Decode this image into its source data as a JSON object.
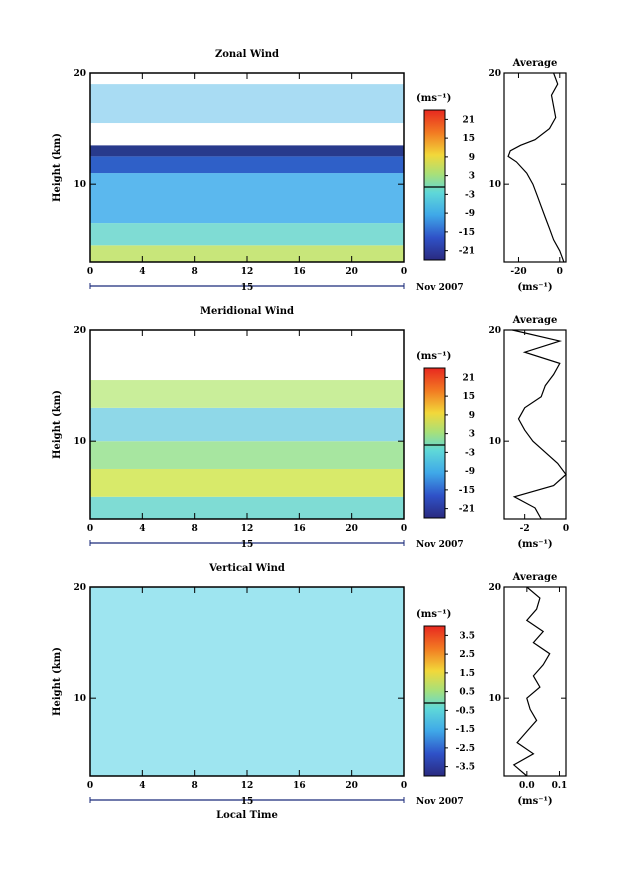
{
  "chart_data": [
    {
      "type": "heatmap",
      "title": "Zonal Wind",
      "xlabel": "",
      "ylabel": "Height (km)",
      "x_ticks": [
        "0",
        "4",
        "8",
        "12",
        "16",
        "20",
        "0"
      ],
      "xlim": [
        0,
        24
      ],
      "ylim": [
        3,
        20
      ],
      "y_ticks": [
        "10",
        "20"
      ],
      "date_label": "15",
      "month_label": "Nov 2007",
      "colorbar_unit": "(ms⁻¹)",
      "colorbar_ticks": [
        "21",
        "15",
        "9",
        "3",
        "-3",
        "-9",
        "-15",
        "-21"
      ],
      "layers": [
        {
          "y0": 3,
          "y1": 4.5,
          "color": "#c8e67a"
        },
        {
          "y0": 4.5,
          "y1": 6.5,
          "color": "#7fdcd4"
        },
        {
          "y0": 6.5,
          "y1": 11,
          "color": "#5bb8ee"
        },
        {
          "y0": 11,
          "y1": 12.5,
          "color": "#2f60c8"
        },
        {
          "y0": 12.5,
          "y1": 13.5,
          "color": "#283a8c"
        },
        {
          "y0": 13.5,
          "y1": 15.5,
          "color": "#ffffff"
        },
        {
          "y0": 15.5,
          "y1": 19,
          "color": "#a9dcf3"
        }
      ],
      "average": {
        "title": "Average",
        "xlabel": "(ms⁻¹)",
        "x_ticks": [
          "-20",
          "0"
        ],
        "x_tick_values": [
          -20,
          0
        ],
        "xlim": [
          -27,
          3
        ],
        "ylim": [
          3,
          20
        ],
        "y_ticks": [
          "10",
          "20"
        ],
        "profile": {
          "height": [
            3,
            4,
            5,
            6,
            7,
            8,
            9,
            10,
            11,
            12,
            12.5,
            13,
            13.5,
            14,
            15,
            16,
            17,
            18,
            19,
            20
          ],
          "value": [
            2,
            0,
            -3,
            -5,
            -7,
            -9,
            -11,
            -13,
            -16,
            -21,
            -25,
            -24,
            -19,
            -12,
            -5,
            -2,
            -3,
            -4,
            -1,
            -3
          ]
        }
      }
    },
    {
      "type": "heatmap",
      "title": "Meridional Wind",
      "xlabel": "",
      "ylabel": "Height (km)",
      "x_ticks": [
        "0",
        "4",
        "8",
        "12",
        "16",
        "20",
        "0"
      ],
      "xlim": [
        0,
        24
      ],
      "ylim": [
        3,
        20
      ],
      "y_ticks": [
        "10",
        "20"
      ],
      "date_label": "15",
      "month_label": "Nov 2007",
      "colorbar_unit": "(ms⁻¹)",
      "colorbar_ticks": [
        "21",
        "15",
        "9",
        "3",
        "-3",
        "-9",
        "-15",
        "-21"
      ],
      "layers": [
        {
          "y0": 3,
          "y1": 5,
          "color": "#7fdcd4"
        },
        {
          "y0": 5,
          "y1": 7.5,
          "color": "#d8ea6a"
        },
        {
          "y0": 7.5,
          "y1": 10,
          "color": "#a7e6a0"
        },
        {
          "y0": 10,
          "y1": 13,
          "color": "#8fd8e8"
        },
        {
          "y0": 13,
          "y1": 15.5,
          "color": "#c9ee9a"
        },
        {
          "y0": 15.5,
          "y1": 18,
          "color": "#ffffff"
        }
      ],
      "average": {
        "title": "Average",
        "xlabel": "(ms⁻¹)",
        "x_ticks": [
          "-2",
          "0"
        ],
        "x_tick_values": [
          -2,
          0
        ],
        "xlim": [
          -3,
          0
        ],
        "ylim": [
          3,
          20
        ],
        "y_ticks": [
          "10",
          "20"
        ],
        "profile": {
          "height": [
            3,
            4,
            5,
            6,
            7,
            8,
            9,
            10,
            11,
            12,
            13,
            14,
            15,
            16,
            17,
            18,
            19,
            20
          ],
          "value": [
            -1.2,
            -1.5,
            -2.5,
            -0.6,
            0,
            -0.4,
            -1.0,
            -1.6,
            -2.0,
            -2.3,
            -2.0,
            -1.2,
            -1.0,
            -0.6,
            -0.3,
            -2.0,
            -0.3,
            -2.6
          ]
        }
      }
    },
    {
      "type": "heatmap",
      "title": "Vertical Wind",
      "xlabel": "Local Time",
      "ylabel": "Height (km)",
      "x_ticks": [
        "0",
        "4",
        "8",
        "12",
        "16",
        "20",
        "0"
      ],
      "xlim": [
        0,
        24
      ],
      "ylim": [
        3,
        20
      ],
      "y_ticks": [
        "10",
        "20"
      ],
      "date_label": "15",
      "month_label": "Nov 2007",
      "colorbar_unit": "(ms⁻¹)",
      "colorbar_ticks": [
        "3.5",
        "2.5",
        "1.5",
        "0.5",
        "-0.5",
        "-1.5",
        "-2.5",
        "-3.5"
      ],
      "layers": [
        {
          "y0": 3,
          "y1": 20,
          "color": "#9ee5f0"
        }
      ],
      "average": {
        "title": "Average",
        "xlabel": "(ms⁻¹)",
        "x_ticks": [
          "0.0",
          "0.1"
        ],
        "x_tick_values": [
          0,
          0.1
        ],
        "xlim": [
          -0.07,
          0.12
        ],
        "ylim": [
          3,
          20
        ],
        "y_ticks": [
          "10",
          "20"
        ],
        "profile": {
          "height": [
            3,
            4,
            5,
            6,
            7,
            8,
            9,
            10,
            11,
            12,
            13,
            14,
            15,
            16,
            17,
            18,
            19,
            20
          ],
          "value": [
            0.0,
            -0.04,
            0.02,
            -0.03,
            0.0,
            0.03,
            0.01,
            0.0,
            0.04,
            0.02,
            0.05,
            0.07,
            0.02,
            0.05,
            0.0,
            0.03,
            0.04,
            0.0
          ]
        }
      }
    }
  ]
}
